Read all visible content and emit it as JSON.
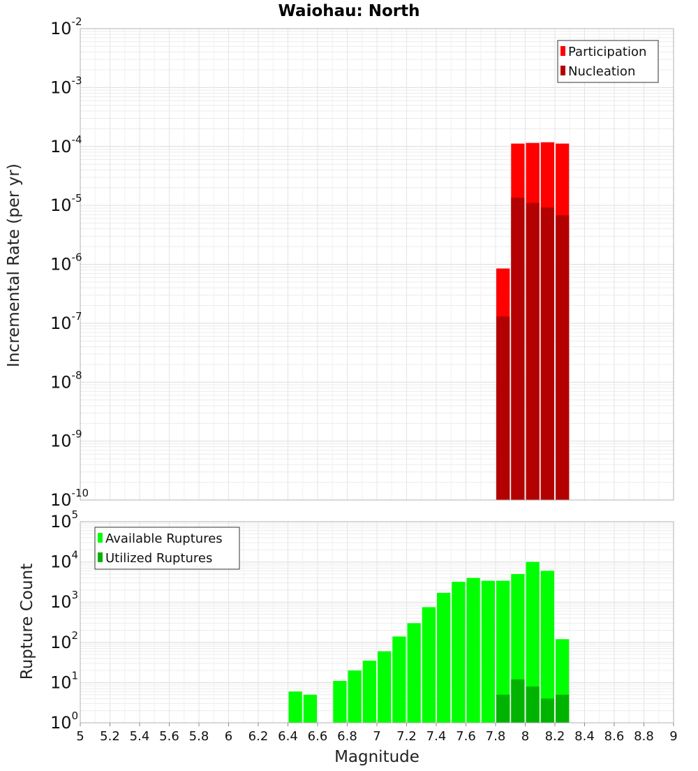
{
  "chart_data": [
    {
      "type": "bar",
      "title": "Waiohau: North",
      "ylabel": "Incremental Rate (per yr)",
      "yscale": "log",
      "ylim": [
        1e-10,
        0.01
      ],
      "xlim": [
        5,
        9
      ],
      "y_tick_exponents": [
        -10,
        -9,
        -8,
        -7,
        -6,
        -5,
        -4,
        -3,
        -2
      ],
      "grid": true,
      "legend_position": "top-right",
      "x": [
        7.85,
        7.95,
        8.05,
        8.15,
        8.25
      ],
      "bar_width": 0.1,
      "series": [
        {
          "name": "Participation",
          "color": "#ff0000",
          "values": [
            8.5e-07,
            0.000112,
            0.000115,
            0.000118,
            0.000112
          ]
        },
        {
          "name": "Nucleation",
          "color": "#b30000",
          "values": [
            1.3e-07,
            1.35e-05,
            1.1e-05,
            9.2e-06,
            6.8e-06
          ]
        }
      ]
    },
    {
      "type": "bar",
      "xlabel": "Magnitude",
      "ylabel": "Rupture Count",
      "yscale": "log",
      "ylim": [
        1,
        100000
      ],
      "xlim": [
        5,
        9
      ],
      "y_tick_exponents": [
        0,
        1,
        2,
        3,
        4,
        5
      ],
      "x_ticks": [
        "5",
        "5.2",
        "5.4",
        "5.6",
        "5.8",
        "6",
        "6.2",
        "6.4",
        "6.6",
        "6.8",
        "7",
        "7.2",
        "7.4",
        "7.6",
        "7.8",
        "8",
        "8.2",
        "8.4",
        "8.6",
        "8.8",
        "9"
      ],
      "grid": true,
      "legend_position": "top-left",
      "x": [
        6.45,
        6.55,
        6.65,
        6.75,
        6.85,
        6.95,
        7.05,
        7.15,
        7.25,
        7.35,
        7.45,
        7.55,
        7.65,
        7.75,
        7.85,
        7.95,
        8.05,
        8.15,
        8.25
      ],
      "bar_width": 0.1,
      "series": [
        {
          "name": "Available Ruptures",
          "color": "#00ff00",
          "values": [
            6,
            5,
            1,
            11,
            20,
            35,
            60,
            140,
            300,
            750,
            1700,
            3200,
            4000,
            3400,
            3400,
            5000,
            10000,
            6000,
            120
          ]
        },
        {
          "name": "Utilized Ruptures",
          "color": "#00b300",
          "values": [
            0,
            0,
            0,
            0,
            0,
            0,
            0,
            0,
            0,
            0,
            0,
            0,
            0,
            0,
            5,
            12,
            8,
            4,
            5
          ]
        }
      ]
    }
  ]
}
